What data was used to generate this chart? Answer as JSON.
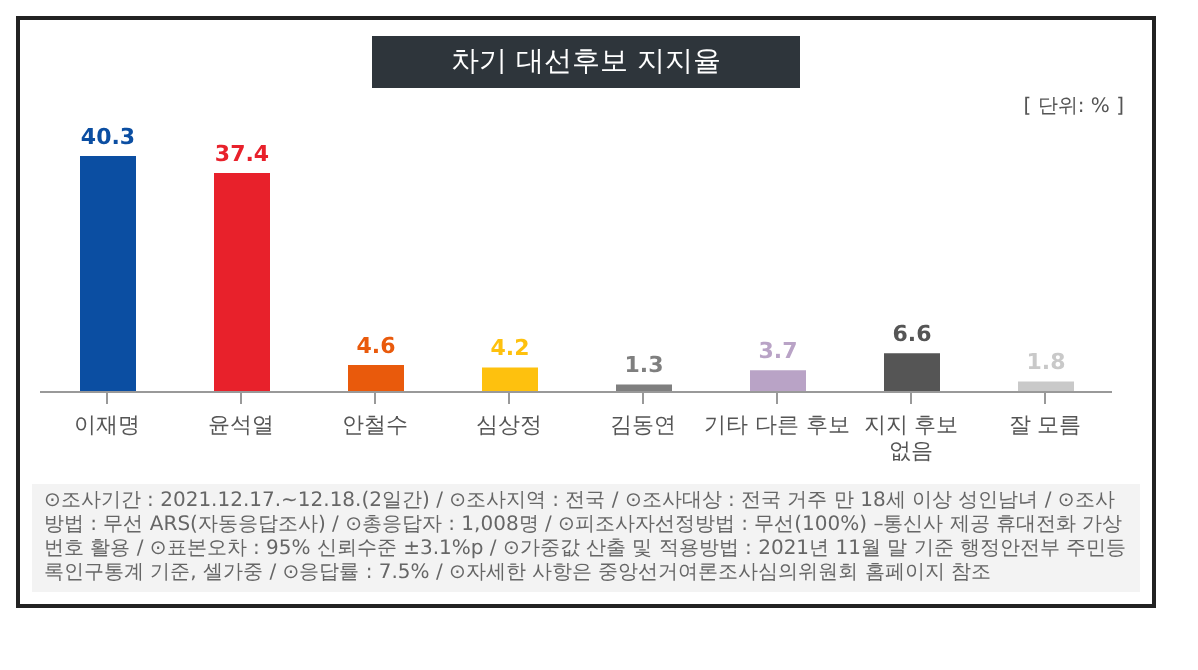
{
  "chart_data": {
    "type": "bar",
    "title": "차기 대선후보 지지율",
    "categories": [
      "이재명",
      "윤석열",
      "안철수",
      "심상정",
      "김동연",
      "기타 다른 후보",
      "지지 후보\n없음",
      "잘 모름"
    ],
    "values": [
      40.3,
      37.4,
      4.6,
      4.2,
      1.3,
      3.7,
      6.6,
      1.8
    ],
    "colors": [
      "#0b4ea2",
      "#e8212b",
      "#e95a0c",
      "#fec10e",
      "#7f7f7f",
      "#b9a3c6",
      "#555555",
      "#c9c9c9"
    ],
    "data_labels": true,
    "grid": false,
    "legend": false,
    "annotations": [
      "[ 단위: % ]",
      "⊙조사기간 : 2021.12.17.~12.18.(2일간) / ⊙조사지역 : 전국 / ⊙조사대상 : 전국 거주 만 18세 이상 성인남녀 / ⊙조사방법 : 무선 ARS(자동응답조사) / ⊙총응답자 : 1,008명 / ⊙피조사자선정방법 : 무선(100%) –통신사 제공 휴대전화 가상번호 활용 / ⊙표본오차 : 95% 신뢰수준 ±3.1%p / ⊙가중값 산출 및 적용방법 : 2021년 11월 말 기준 행정안전부 주민등록인구통계 기준, 셀가중 / ⊙응답률 : 7.5% / ⊙자세한 사항은 중앙선거여론조사심의위원회 홈페이지 참조"
    ]
  }
}
